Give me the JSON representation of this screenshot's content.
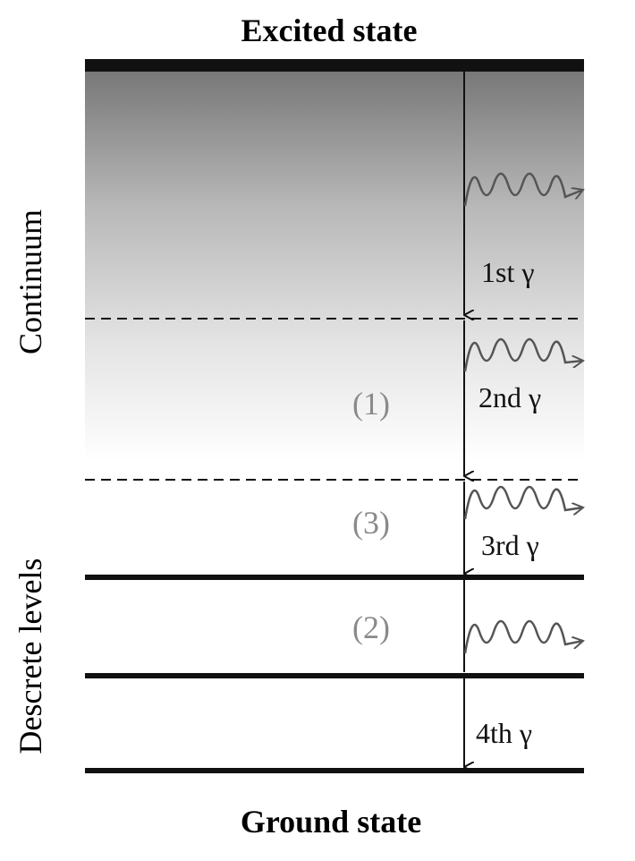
{
  "titles": {
    "top": "Excited state",
    "bottom": "Ground state"
  },
  "side_labels": {
    "continuum": "Continuum",
    "discrete": "Descrete levels"
  },
  "gamma_labels": [
    "1st γ",
    "2nd γ",
    "3rd γ",
    "4th γ"
  ],
  "region_labels": [
    "(1)",
    "(3)",
    "(2)"
  ],
  "colors": {
    "line": "#111111",
    "wave": "#555555",
    "region_text": "#8a8a8a",
    "gradient_top": "#7a7a7a",
    "gradient_bottom": "#ffffff"
  }
}
